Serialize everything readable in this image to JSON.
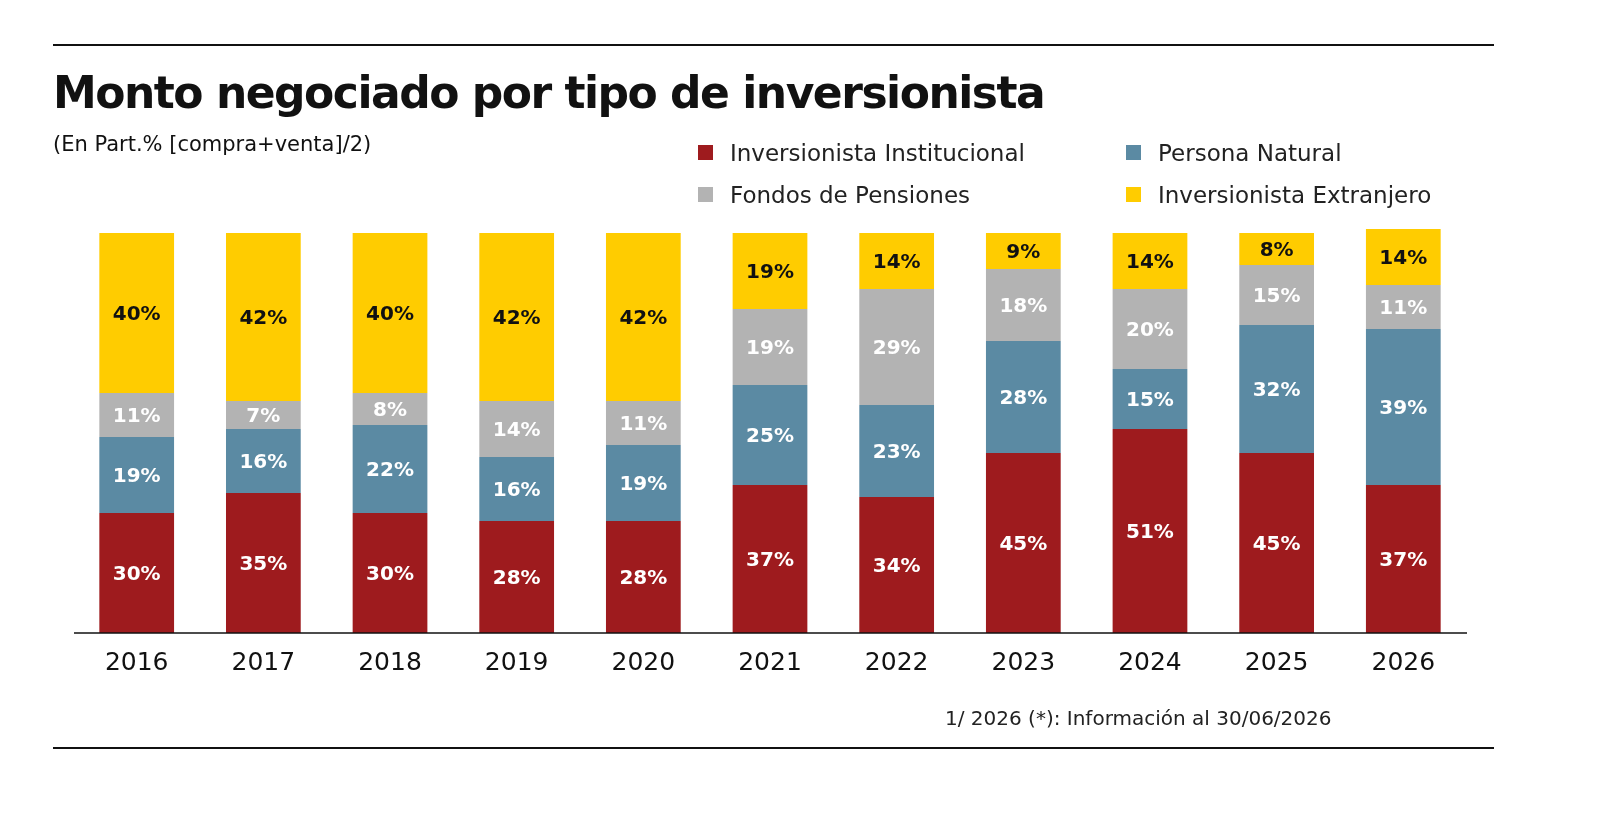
{
  "chart_data": {
    "type": "bar",
    "title": "Monto negociado por tipo de inversionista",
    "subtitle": "(En Part.% [compra+venta]/2)",
    "categories": [
      "2016",
      "2017",
      "2018",
      "2019",
      "2020",
      "2021",
      "2022",
      "2023",
      "2024",
      "2025",
      "2026"
    ],
    "series": [
      {
        "name": "Inversionista Institucional",
        "color": "#9e1b1e",
        "values": [
          30,
          35,
          30,
          28,
          28,
          37,
          34,
          45,
          51,
          45,
          37
        ],
        "value_labels": [
          "30%",
          "35%",
          "30%",
          "28%",
          "28%",
          "37%",
          "34%",
          "45%",
          "51%",
          "45%",
          "37%"
        ]
      },
      {
        "name": "Persona Natural",
        "color": "#5b8aa3",
        "values": [
          19,
          16,
          22,
          16,
          19,
          25,
          23,
          28,
          15,
          32,
          39
        ],
        "value_labels": [
          "19%",
          "16%",
          "22%",
          "16%",
          "19%",
          "25%",
          "23%",
          "28%",
          "15%",
          "32%",
          "39%"
        ]
      },
      {
        "name": "Fondos de Pensiones",
        "color": "#b3b3b3",
        "values": [
          11,
          7,
          8,
          14,
          11,
          19,
          29,
          18,
          20,
          15,
          11
        ],
        "value_labels": [
          "11%",
          "7%",
          "8%",
          "14%",
          "11%",
          "19%",
          "29%",
          "18%",
          "20%",
          "15%",
          "11%"
        ]
      },
      {
        "name": "Inversionista Extranjero",
        "color": "#ffcc00",
        "values": [
          40,
          42,
          40,
          42,
          42,
          19,
          14,
          9,
          14,
          8,
          14
        ],
        "value_labels": [
          "40%",
          "42%",
          "40%",
          "42%",
          "42%",
          "19%",
          "14%",
          "9%",
          "14%",
          "8%",
          "14%"
        ]
      }
    ],
    "stacked": true,
    "tick_labels": "x",
    "legend": "top right",
    "annotations": [
      "1/ 2026 (*): Información al 30/06/2026"
    ]
  }
}
